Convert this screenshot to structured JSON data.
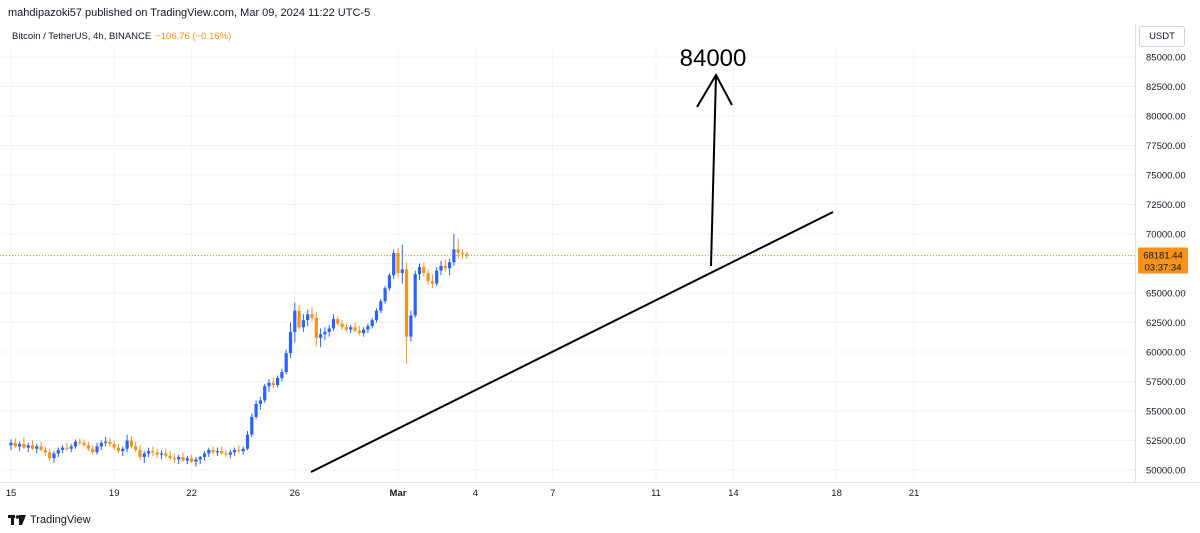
{
  "header": {
    "published_line": "mahdipazoki57 published on TradingView.com, Mar 09, 2024 11:22 UTC-5",
    "symbol_line": "Bitcoin / TetherUS, 4h, BINANCE",
    "change_text": "−106.76 (−0.16%)",
    "currency_button": "USDT"
  },
  "footer": {
    "brand": "TradingView",
    "logo_icon": "tradingview-logo-icon"
  },
  "colors": {
    "up": "#2962ff",
    "down": "#f7931a",
    "price_tag": "#f7931a",
    "grid": "#f0f3fa"
  },
  "chart_data": {
    "type": "candlestick",
    "ylim": [
      49000,
      87000
    ],
    "y_ticks": [
      "85000.00",
      "82500.00",
      "80000.00",
      "77500.00",
      "75000.00",
      "72500.00",
      "70000.00",
      "67500.00",
      "65000.00",
      "62500.00",
      "60000.00",
      "57500.00",
      "55000.00",
      "52500.00",
      "50000.00"
    ],
    "x_ticks": [
      {
        "label": "15",
        "bar": 0
      },
      {
        "label": "19",
        "bar": 24
      },
      {
        "label": "22",
        "bar": 42
      },
      {
        "label": "26",
        "bar": 66
      },
      {
        "label": "Mar",
        "bar": 90
      },
      {
        "label": "4",
        "bar": 108
      },
      {
        "label": "7",
        "bar": 126
      },
      {
        "label": "11",
        "bar": 150
      },
      {
        "label": "14",
        "bar": 168
      },
      {
        "label": "21",
        "bar": 210
      }
    ],
    "x_ticks_extra": [
      {
        "label": "18",
        "bar": 192
      }
    ],
    "last_price": "68181.44",
    "countdown": "03:37:34",
    "candles": [
      [
        52100,
        52600,
        51700,
        52300
      ],
      [
        52300,
        52700,
        51900,
        52000
      ],
      [
        52000,
        52400,
        51600,
        52200
      ],
      [
        52200,
        52800,
        51800,
        51900
      ],
      [
        51900,
        52300,
        51500,
        52100
      ],
      [
        52100,
        52500,
        51700,
        51800
      ],
      [
        51800,
        52200,
        51400,
        52000
      ],
      [
        52000,
        52400,
        51600,
        51700
      ],
      [
        51700,
        52000,
        51200,
        51500
      ],
      [
        51500,
        51800,
        50700,
        51000
      ],
      [
        51000,
        51600,
        50600,
        51400
      ],
      [
        51400,
        51900,
        51100,
        51700
      ],
      [
        51700,
        52100,
        51400,
        51900
      ],
      [
        51900,
        52300,
        51600,
        51800
      ],
      [
        51800,
        52200,
        51500,
        52000
      ],
      [
        52000,
        52600,
        51800,
        52400
      ],
      [
        52400,
        52700,
        52100,
        52300
      ],
      [
        52300,
        52600,
        52000,
        52100
      ],
      [
        52100,
        52400,
        51600,
        51800
      ],
      [
        51800,
        52100,
        51300,
        51500
      ],
      [
        51500,
        52300,
        51300,
        52000
      ],
      [
        52000,
        52500,
        51700,
        52300
      ],
      [
        52300,
        52800,
        52000,
        52400
      ],
      [
        52400,
        52700,
        52000,
        52200
      ],
      [
        52200,
        52500,
        51700,
        51900
      ],
      [
        51900,
        52200,
        51400,
        51600
      ],
      [
        51600,
        52000,
        51200,
        51800
      ],
      [
        51800,
        53000,
        51500,
        52500
      ],
      [
        52500,
        52900,
        51800,
        52000
      ],
      [
        52000,
        52400,
        51500,
        51700
      ],
      [
        51700,
        52100,
        50800,
        51100
      ],
      [
        51100,
        51600,
        50600,
        51400
      ],
      [
        51400,
        51900,
        51100,
        51600
      ],
      [
        51600,
        52000,
        51200,
        51500
      ],
      [
        51500,
        51800,
        51000,
        51300
      ],
      [
        51300,
        51700,
        50900,
        51400
      ],
      [
        51400,
        51800,
        51000,
        51200
      ],
      [
        51200,
        51600,
        50800,
        51000
      ],
      [
        51000,
        51400,
        50600,
        50900
      ],
      [
        50900,
        51300,
        50500,
        51100
      ],
      [
        51100,
        51500,
        50700,
        50800
      ],
      [
        50800,
        51200,
        50500,
        51000
      ],
      [
        51000,
        51300,
        50600,
        50700
      ],
      [
        50700,
        51100,
        50300,
        50900
      ],
      [
        50900,
        51200,
        50500,
        51100
      ],
      [
        51100,
        51600,
        50800,
        51400
      ],
      [
        51400,
        51900,
        51100,
        51700
      ],
      [
        51700,
        52000,
        51300,
        51500
      ],
      [
        51500,
        51900,
        51200,
        51600
      ],
      [
        51600,
        52000,
        51300,
        51400
      ],
      [
        51400,
        51700,
        51100,
        51300
      ],
      [
        51300,
        51700,
        51000,
        51500
      ],
      [
        51500,
        51900,
        51200,
        51700
      ],
      [
        51700,
        52100,
        51400,
        51600
      ],
      [
        51600,
        52000,
        51300,
        51800
      ],
      [
        51800,
        53300,
        51700,
        53000
      ],
      [
        53000,
        54800,
        52800,
        54500
      ],
      [
        54500,
        55900,
        54300,
        55600
      ],
      [
        55600,
        56200,
        55100,
        55900
      ],
      [
        55900,
        57300,
        55700,
        57100
      ],
      [
        57100,
        57700,
        56600,
        57400
      ],
      [
        57400,
        57800,
        56900,
        57200
      ],
      [
        57200,
        58000,
        57000,
        57800
      ],
      [
        57800,
        58600,
        57500,
        58300
      ],
      [
        58300,
        60200,
        58100,
        59900
      ],
      [
        59900,
        62500,
        59500,
        61700
      ],
      [
        61700,
        64200,
        60800,
        63500
      ],
      [
        63500,
        64000,
        61900,
        62100
      ],
      [
        62100,
        63200,
        61700,
        62700
      ],
      [
        62700,
        63600,
        62200,
        63200
      ],
      [
        63200,
        63800,
        62600,
        62900
      ],
      [
        62900,
        63400,
        60500,
        61200
      ],
      [
        61200,
        62000,
        60400,
        61500
      ],
      [
        61500,
        62100,
        61000,
        61700
      ],
      [
        61700,
        62300,
        61300,
        62000
      ],
      [
        62000,
        63200,
        61800,
        62800
      ],
      [
        62800,
        63000,
        62200,
        62400
      ],
      [
        62400,
        62700,
        61900,
        62100
      ],
      [
        62100,
        62400,
        61700,
        61900
      ],
      [
        61900,
        62300,
        61600,
        62100
      ],
      [
        62100,
        62500,
        61700,
        61800
      ],
      [
        61800,
        62200,
        61400,
        61600
      ],
      [
        61600,
        62100,
        61300,
        61900
      ],
      [
        61900,
        62400,
        61600,
        62200
      ],
      [
        62200,
        62900,
        62000,
        62700
      ],
      [
        62700,
        63700,
        62500,
        63500
      ],
      [
        63500,
        64500,
        63300,
        64300
      ],
      [
        64300,
        65600,
        64100,
        65400
      ],
      [
        65400,
        66700,
        65200,
        66500
      ],
      [
        66500,
        68700,
        66200,
        68400
      ],
      [
        68400,
        68800,
        66300,
        66700
      ],
      [
        66700,
        69100,
        65800,
        67000
      ],
      [
        67000,
        67600,
        59000,
        61300
      ],
      [
        61300,
        63500,
        60900,
        63100
      ],
      [
        63100,
        66900,
        62900,
        66600
      ],
      [
        66600,
        67500,
        66100,
        67200
      ],
      [
        67200,
        67600,
        66400,
        66700
      ],
      [
        66700,
        67000,
        65700,
        66000
      ],
      [
        66000,
        66600,
        65400,
        65800
      ],
      [
        65800,
        67200,
        65600,
        66900
      ],
      [
        66900,
        67700,
        66500,
        67300
      ],
      [
        67300,
        67800,
        66800,
        67100
      ],
      [
        67100,
        67900,
        66500,
        67600
      ],
      [
        67600,
        70000,
        67300,
        68700
      ],
      [
        68700,
        69600,
        67900,
        68400
      ],
      [
        68400,
        68700,
        67900,
        68300
      ],
      [
        68300,
        68500,
        67900,
        68181
      ]
    ]
  }
}
